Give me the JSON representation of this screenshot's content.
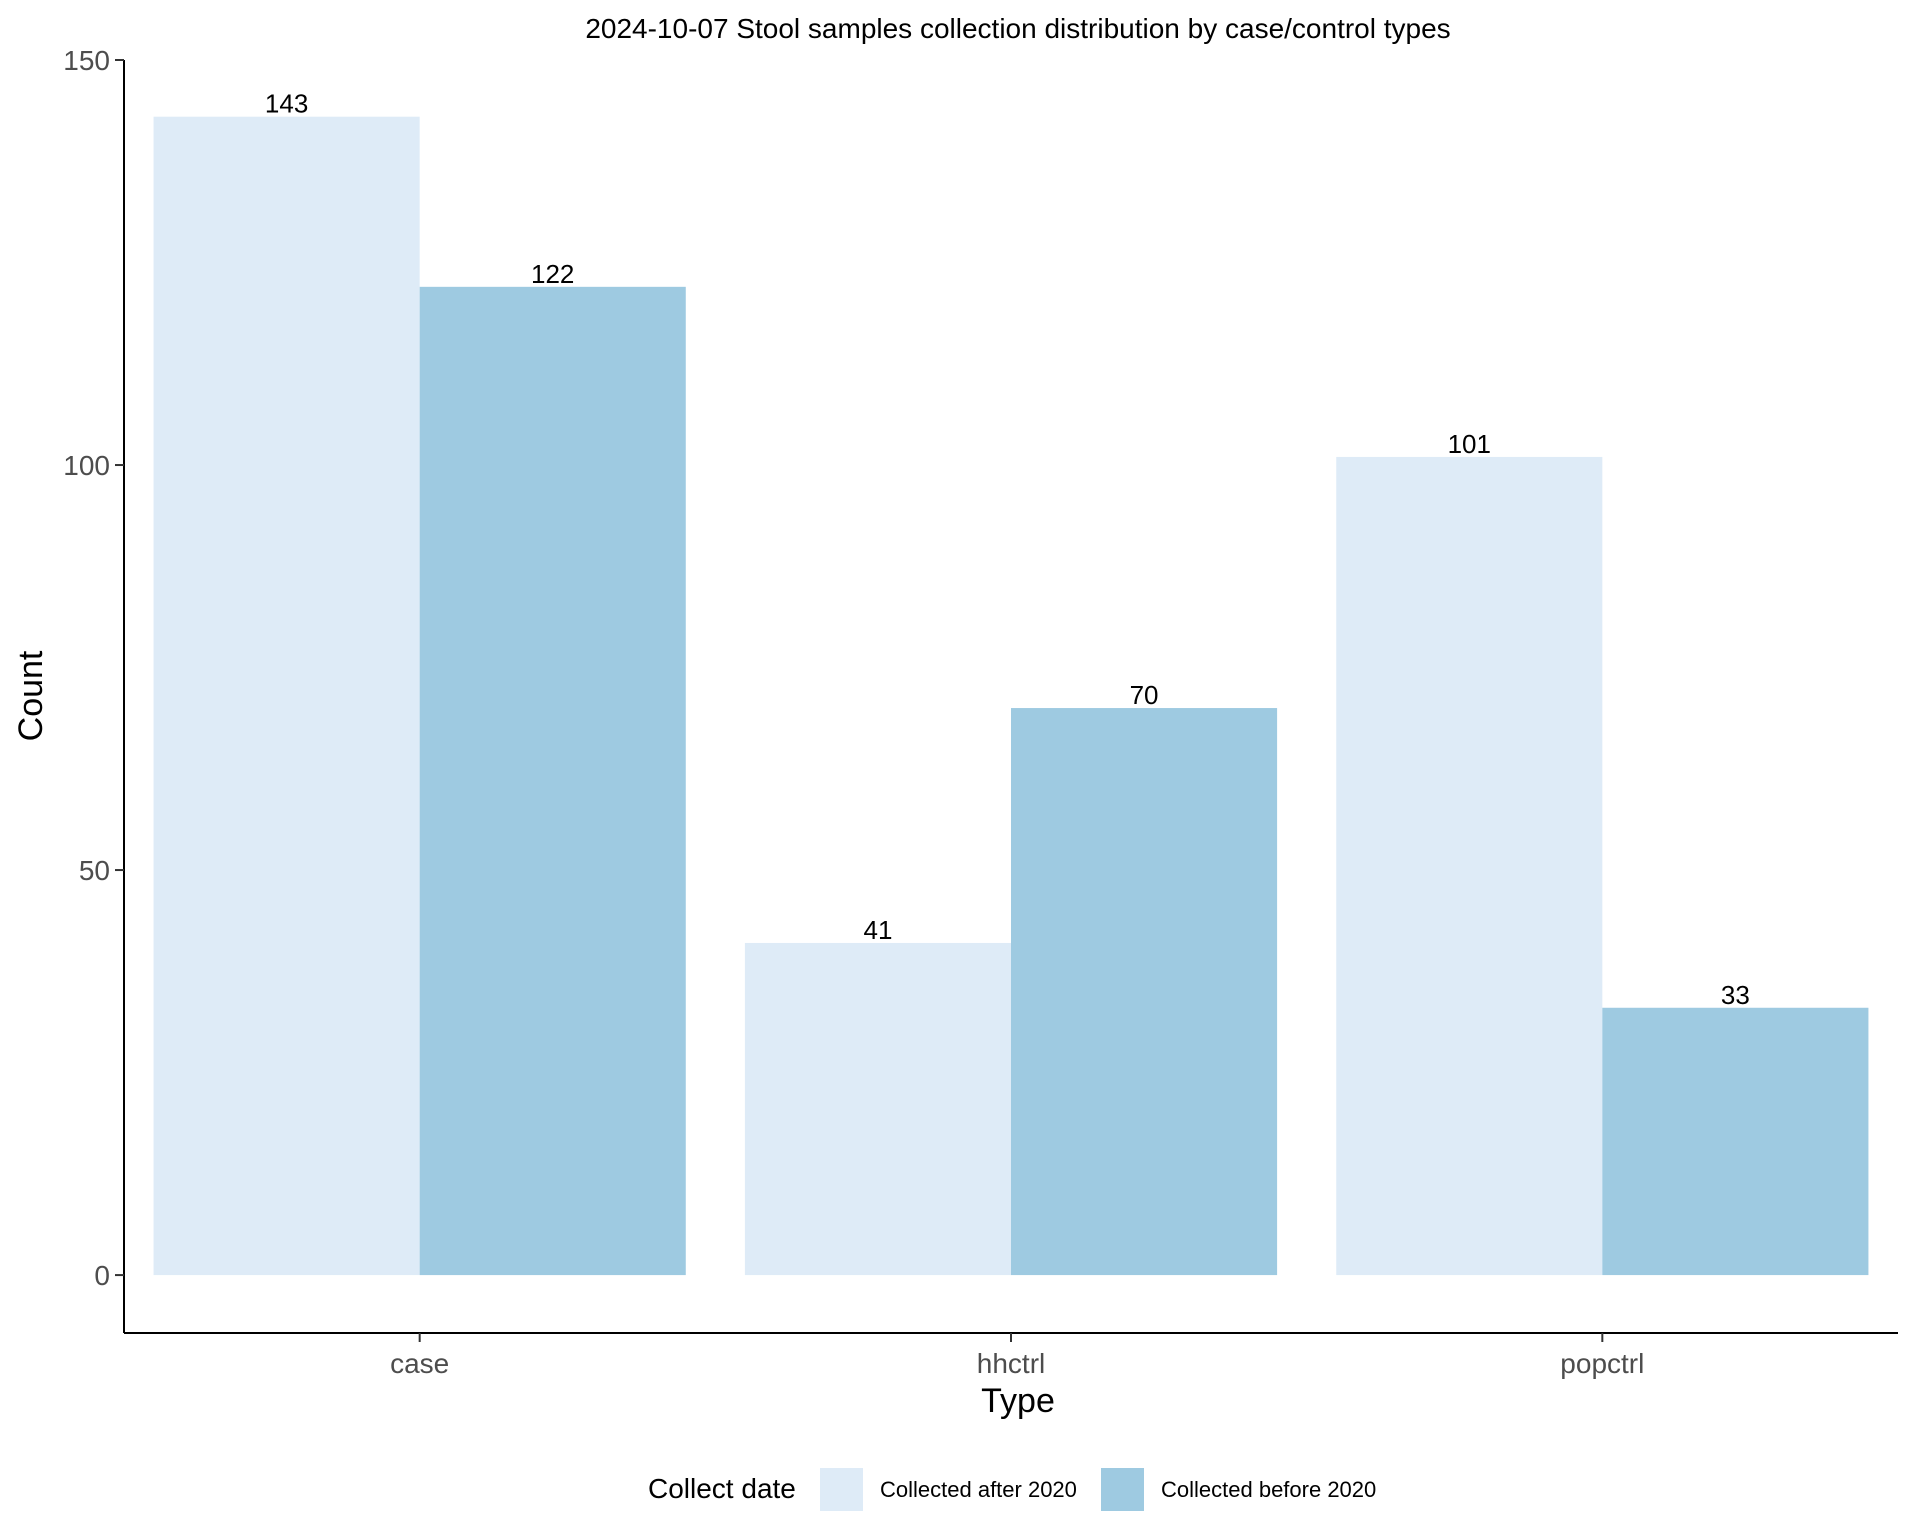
{
  "chart_data": {
    "type": "bar",
    "title": "2024-10-07 Stool samples collection distribution by case/control types",
    "xlabel": "Type",
    "ylabel": "Count",
    "categories": [
      "case",
      "hhctrl",
      "popctrl"
    ],
    "series": [
      {
        "name": "Collected after 2020",
        "color": "#deebf7",
        "values": [
          143,
          41,
          101
        ]
      },
      {
        "name": "Collected before 2020",
        "color": "#9ecae1",
        "values": [
          122,
          70,
          33
        ]
      }
    ],
    "ylim": [
      -7.15,
      150
    ],
    "yticks": [
      0,
      50,
      100,
      150
    ],
    "grid": false,
    "legend": {
      "title": "Collect date",
      "position": "bottom"
    }
  }
}
